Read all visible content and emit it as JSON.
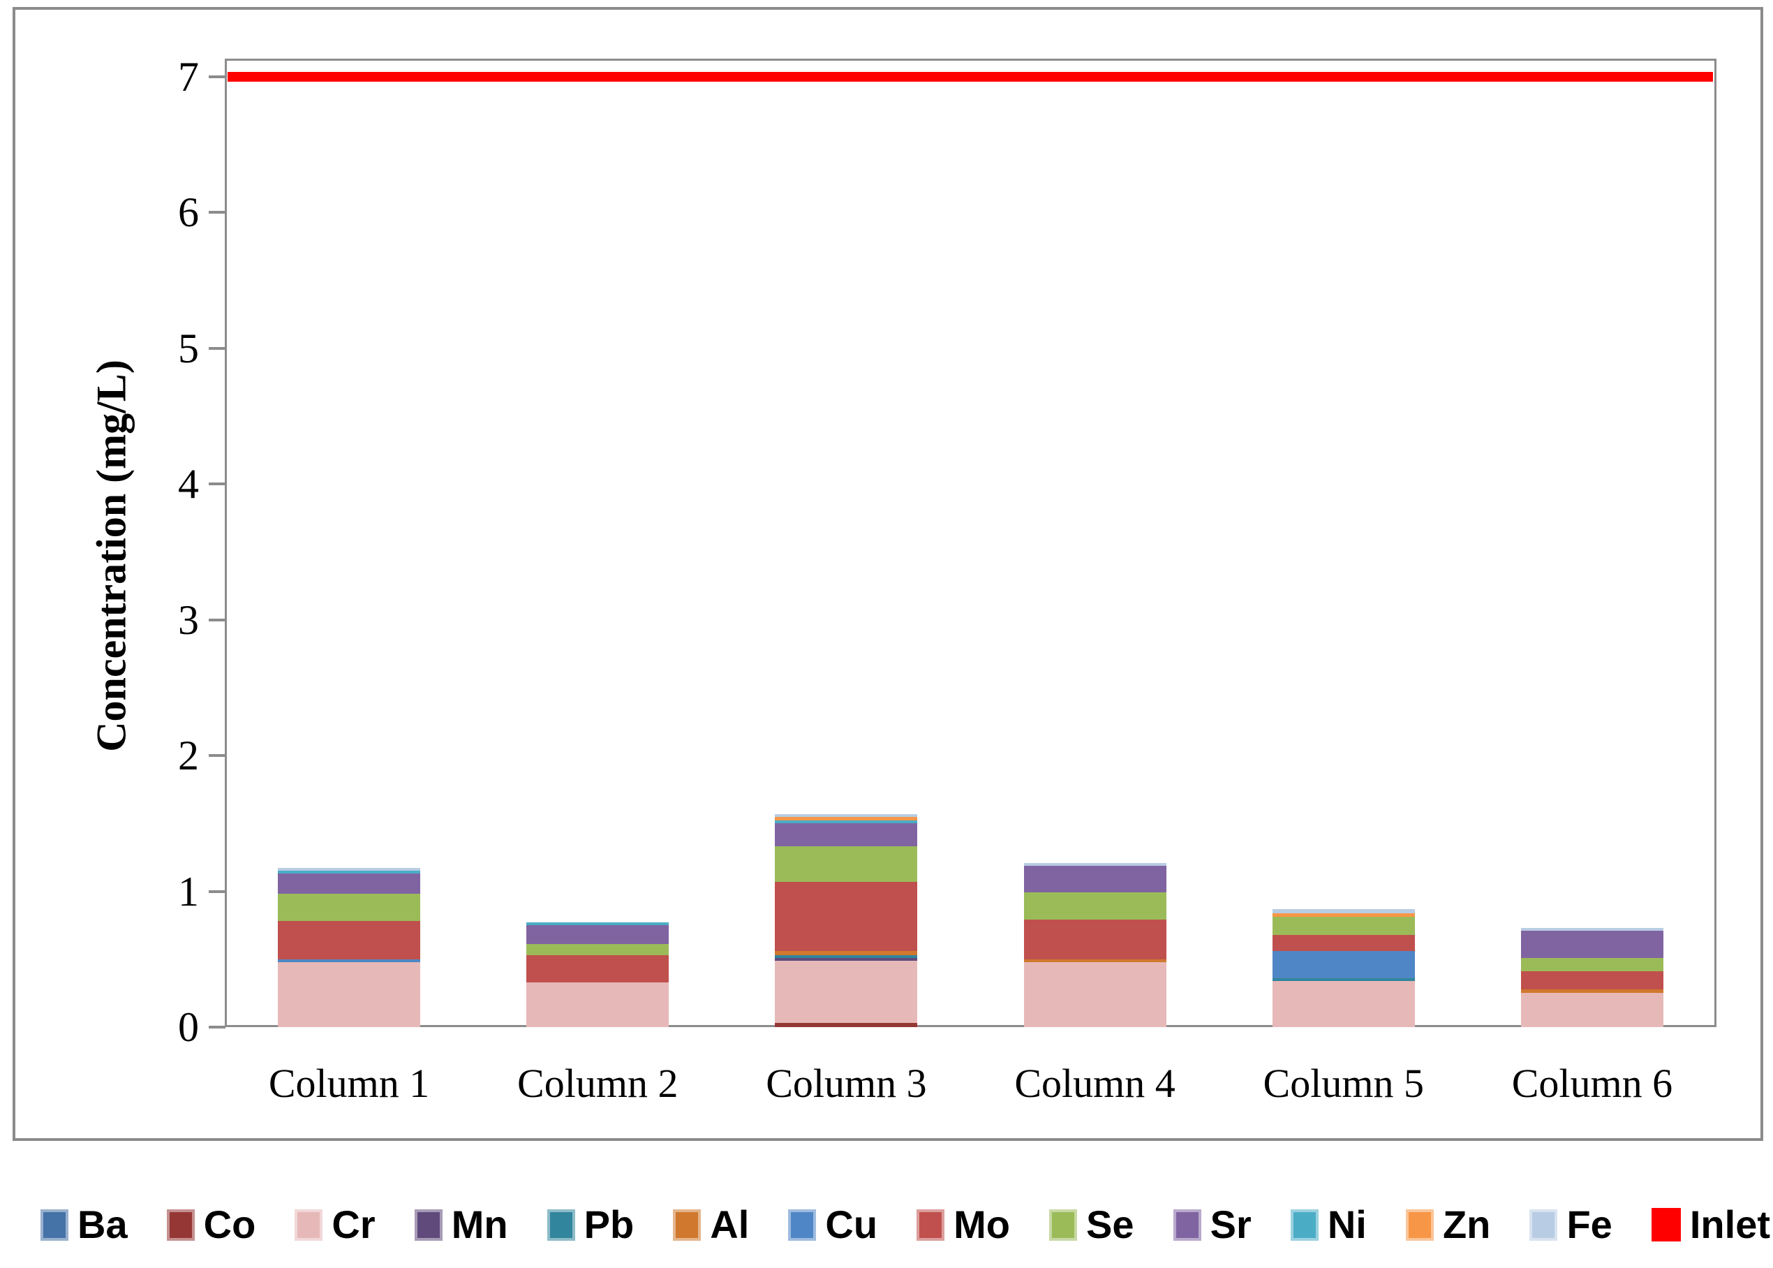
{
  "chart_data": {
    "type": "bar",
    "stacked": true,
    "title": "",
    "xlabel": "",
    "ylabel": "Concentration (mg/L)",
    "ylim": [
      0,
      7.13
    ],
    "yticks": [
      0,
      1,
      2,
      3,
      4,
      5,
      6,
      7
    ],
    "grid": false,
    "legend_position": "bottom",
    "categories": [
      "Column 1",
      "Column 2",
      "Column 3",
      "Column 4",
      "Column 5",
      "Column 6"
    ],
    "series": [
      {
        "name": "Ba",
        "color": "#4572a7",
        "values": [
          0,
          0,
          0,
          0,
          0,
          0
        ]
      },
      {
        "name": "Co",
        "color": "#953735",
        "values": [
          0,
          0,
          0.03,
          0,
          0,
          0
        ]
      },
      {
        "name": "Cr",
        "color": "#e6b9b8",
        "values": [
          0.48,
          0.33,
          0.46,
          0.48,
          0.34,
          0.25
        ]
      },
      {
        "name": "Mn",
        "color": "#604a7b",
        "values": [
          0,
          0,
          0.02,
          0,
          0,
          0
        ]
      },
      {
        "name": "Pb",
        "color": "#31859c",
        "values": [
          0,
          0,
          0.02,
          0,
          0.02,
          0
        ]
      },
      {
        "name": "Al",
        "color": "#d0782e",
        "values": [
          0,
          0,
          0.03,
          0.02,
          0,
          0.03
        ]
      },
      {
        "name": "Cu",
        "color": "#4f86c6",
        "values": [
          0.02,
          0,
          0,
          0,
          0.2,
          0
        ]
      },
      {
        "name": "Mo",
        "color": "#c0504d",
        "values": [
          0.28,
          0.2,
          0.51,
          0.29,
          0.12,
          0.13
        ]
      },
      {
        "name": "Se",
        "color": "#9bbb59",
        "values": [
          0.2,
          0.08,
          0.26,
          0.2,
          0.13,
          0.1
        ]
      },
      {
        "name": "Sr",
        "color": "#8064a2",
        "values": [
          0.15,
          0.14,
          0.17,
          0.2,
          0,
          0.2
        ]
      },
      {
        "name": "Ni",
        "color": "#4bacc6",
        "values": [
          0.02,
          0.02,
          0.02,
          0,
          0,
          0
        ]
      },
      {
        "name": "Zn",
        "color": "#f79646",
        "values": [
          0,
          0,
          0.03,
          0,
          0.03,
          0
        ]
      },
      {
        "name": "Fe",
        "color": "#b8cce4",
        "values": [
          0.02,
          0,
          0.02,
          0.02,
          0.03,
          0.02
        ]
      }
    ],
    "reference_line": {
      "name": "Inlet",
      "color": "#ff0000",
      "value": 7.0
    }
  }
}
